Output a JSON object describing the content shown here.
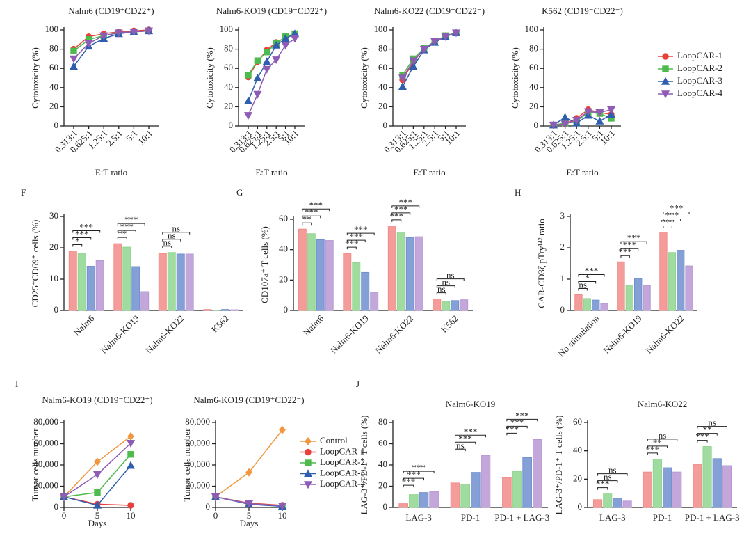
{
  "chart_data": [
    {
      "type": "line",
      "title": "Nalm6 (CD19⁺CD22⁺)",
      "xlabel": "E:T ratio",
      "ylabel": "Cytotoxicity (%)",
      "categories": [
        "0.313:1",
        "0.625:1",
        "1.25:1",
        "2.5:1",
        "5:1",
        "10:1"
      ],
      "ylim": [
        0,
        100
      ],
      "yticks": [
        0,
        20,
        40,
        60,
        80,
        100
      ],
      "series": [
        {
          "name": "LoopCAR-1",
          "color": "#e8413c",
          "marker": "circle",
          "values": [
            80,
            93,
            96,
            98,
            99,
            100
          ]
        },
        {
          "name": "LoopCAR-2",
          "color": "#4dbb4d",
          "marker": "square",
          "values": [
            78,
            90,
            94,
            97,
            98,
            99
          ]
        },
        {
          "name": "LoopCAR-3",
          "color": "#2f5eae",
          "marker": "triangle",
          "values": [
            62,
            83,
            91,
            96,
            98,
            99
          ]
        },
        {
          "name": "LoopCAR-4",
          "color": "#8e5bb5",
          "marker": "triangle-down",
          "values": [
            70,
            86,
            94,
            97,
            98,
            99
          ]
        }
      ]
    },
    {
      "type": "line",
      "title": "Nalm6-KO19 (CD19⁻CD22⁺)",
      "xlabel": "E:T ratio",
      "ylabel": "Cytotoxicity (%)",
      "categories": [
        "0.313:1",
        "0.625:1",
        "1.25:1",
        "2.5:1",
        "5:1",
        "10:1"
      ],
      "ylim": [
        0,
        100
      ],
      "yticks": [
        0,
        20,
        40,
        60,
        80,
        100
      ],
      "series": [
        {
          "name": "LoopCAR-1",
          "color": "#e8413c",
          "marker": "circle",
          "values": [
            51,
            67,
            79,
            87,
            92,
            95
          ]
        },
        {
          "name": "LoopCAR-2",
          "color": "#4dbb4d",
          "marker": "square",
          "values": [
            53,
            68,
            77,
            86,
            93,
            96
          ]
        },
        {
          "name": "LoopCAR-3",
          "color": "#2f5eae",
          "marker": "triangle",
          "values": [
            26,
            50,
            67,
            84,
            91,
            96
          ]
        },
        {
          "name": "LoopCAR-4",
          "color": "#8e5bb5",
          "marker": "triangle-down",
          "values": [
            11,
            33,
            59,
            69,
            84,
            91
          ]
        }
      ]
    },
    {
      "type": "line",
      "title": "Nalm6-KO22 (CD19⁺CD22⁻)",
      "xlabel": "E:T ratio",
      "ylabel": "Cytotoxicity (%)",
      "categories": [
        "0.313:1",
        "0.625:1",
        "1.25:1",
        "2.5:1",
        "5:1",
        "10:1"
      ],
      "ylim": [
        0,
        100
      ],
      "yticks": [
        0,
        20,
        40,
        60,
        80,
        100
      ],
      "series": [
        {
          "name": "LoopCAR-1",
          "color": "#e8413c",
          "marker": "circle",
          "values": [
            48,
            67,
            80,
            88,
            93,
            97
          ]
        },
        {
          "name": "LoopCAR-2",
          "color": "#4dbb4d",
          "marker": "square",
          "values": [
            53,
            70,
            81,
            88,
            94,
            97
          ]
        },
        {
          "name": "LoopCAR-3",
          "color": "#2f5eae",
          "marker": "triangle",
          "values": [
            41,
            62,
            79,
            87,
            93,
            97
          ]
        },
        {
          "name": "LoopCAR-4",
          "color": "#8e5bb5",
          "marker": "triangle-down",
          "values": [
            50,
            68,
            80,
            88,
            93,
            97
          ]
        }
      ]
    },
    {
      "type": "line",
      "title": "K562 (CD19⁻CD22⁻)",
      "xlabel": "E:T ratio",
      "ylabel": "Cytotoxicity (%)",
      "legend": "right",
      "categories": [
        "0.313:1",
        "0.625:1",
        "1.25:1",
        "2.5:1",
        "5:1",
        "10:1"
      ],
      "ylim": [
        0,
        100
      ],
      "yticks": [
        0,
        20,
        40,
        60,
        80,
        100
      ],
      "series": [
        {
          "name": "LoopCAR-1",
          "color": "#e8413c",
          "marker": "circle",
          "values": [
            1,
            2,
            8,
            17,
            14,
            12
          ]
        },
        {
          "name": "LoopCAR-2",
          "color": "#4dbb4d",
          "marker": "square",
          "values": [
            1,
            3,
            5,
            14,
            13,
            8
          ]
        },
        {
          "name": "LoopCAR-3",
          "color": "#2f5eae",
          "marker": "triangle",
          "values": [
            1,
            9,
            3,
            11,
            5,
            12
          ]
        },
        {
          "name": "LoopCAR-4",
          "color": "#8e5bb5",
          "marker": "triangle-down",
          "values": [
            1,
            2,
            6,
            15,
            14,
            17
          ]
        }
      ]
    },
    {
      "type": "bar",
      "panel": "F",
      "ylabel": "CD25⁺CD69⁺ cells (%)",
      "categories": [
        "Nalm6",
        "Nalm6-KO19",
        "Nalm6-KO22",
        "K562"
      ],
      "ylim": [
        0,
        30
      ],
      "yticks": [
        0,
        10,
        20,
        30
      ],
      "series": [
        {
          "name": "LoopCAR-1",
          "color": "#f28b88",
          "values": [
            19,
            21.3,
            18.2,
            0.3
          ]
        },
        {
          "name": "LoopCAR-2",
          "color": "#8fd68f",
          "values": [
            18.2,
            20.2,
            18.5,
            0.1
          ]
        },
        {
          "name": "LoopCAR-3",
          "color": "#6f8fd0",
          "values": [
            14.1,
            14.0,
            18.0,
            0.3
          ]
        },
        {
          "name": "LoopCAR-4",
          "color": "#b898d4",
          "values": [
            15.9,
            6.0,
            18.0,
            0.2
          ]
        }
      ],
      "significance": [
        [
          "*",
          "***",
          "***"
        ],
        [
          "**",
          "***",
          "***"
        ],
        [
          "ns",
          "ns",
          "ns"
        ],
        []
      ]
    },
    {
      "type": "bar",
      "panel": "G",
      "ylabel": "CD107a⁺ T cells (%)",
      "categories": [
        "Nalm6",
        "Nalm6-KO19",
        "Nalm6-KO22",
        "K562"
      ],
      "ylim": [
        0,
        60
      ],
      "yticks": [
        0,
        20,
        40,
        60
      ],
      "series": [
        {
          "name": "LoopCAR-1",
          "color": "#f28b88",
          "values": [
            53.5,
            37.5,
            55.5,
            7.5
          ]
        },
        {
          "name": "LoopCAR-2",
          "color": "#8fd68f",
          "values": [
            50.5,
            31.5,
            51.5,
            6.0
          ]
        },
        {
          "name": "LoopCAR-3",
          "color": "#6f8fd0",
          "values": [
            46.5,
            25.0,
            48.0,
            6.5
          ]
        },
        {
          "name": "LoopCAR-4",
          "color": "#b898d4",
          "values": [
            46.0,
            12.0,
            48.5,
            7.0
          ]
        }
      ],
      "significance": [
        [
          "**",
          "***",
          "***"
        ],
        [
          "***",
          "***",
          "***"
        ],
        [
          "***",
          "***",
          "***"
        ],
        [
          "ns",
          "ns",
          "ns"
        ]
      ]
    },
    {
      "type": "bar",
      "panel": "H",
      "ylabel": "CAR-CD3ζ pTry¹⁴² ratio",
      "categories": [
        "No stimulation",
        "Nalm6-KO19",
        "Nalm6-KO22"
      ],
      "ylim": [
        0,
        3
      ],
      "yticks": [
        0,
        1,
        2,
        3
      ],
      "series": [
        {
          "name": "LoopCAR-1",
          "color": "#f28b88",
          "values": [
            0.5,
            1.55,
            2.5
          ]
        },
        {
          "name": "LoopCAR-2",
          "color": "#8fd68f",
          "values": [
            0.38,
            0.8,
            1.85
          ]
        },
        {
          "name": "LoopCAR-3",
          "color": "#6f8fd0",
          "values": [
            0.33,
            1.02,
            1.92
          ]
        },
        {
          "name": "LoopCAR-4",
          "color": "#b898d4",
          "values": [
            0.22,
            0.8,
            1.42
          ]
        }
      ],
      "significance": [
        [
          "ns",
          "*",
          "***"
        ],
        [
          "***",
          "***",
          "***"
        ],
        [
          "***",
          "***",
          "***"
        ]
      ]
    },
    {
      "type": "line",
      "panel": "I",
      "title": "Nalm6-KO19 (CD19⁻CD22⁺)",
      "xlabel": "Days",
      "ylabel": "Tumor cells number",
      "x": [
        0,
        5,
        10
      ],
      "xlim": [
        0,
        10
      ],
      "xticks": [
        0,
        5,
        10
      ],
      "ylim": [
        0,
        80000
      ],
      "yticks": [
        0,
        {
          "value": 20000,
          "label": "20,000"
        },
        {
          "value": 40000,
          "label": "40,000"
        },
        {
          "value": 60000,
          "label": "60,000"
        },
        {
          "value": 80000,
          "label": "80,000"
        }
      ],
      "series": [
        {
          "name": "Control",
          "color": "#f0973f",
          "marker": "diamond",
          "values": [
            10000,
            43000,
            67000
          ]
        },
        {
          "name": "LoopCAR-1",
          "color": "#e8413c",
          "marker": "circle",
          "values": [
            10000,
            3000,
            2000
          ]
        },
        {
          "name": "LoopCAR-2",
          "color": "#4dbb4d",
          "marker": "square",
          "values": [
            10000,
            14000,
            50000
          ]
        },
        {
          "name": "LoopCAR-3",
          "color": "#2f5eae",
          "marker": "triangle",
          "values": [
            10000,
            2000,
            39500
          ]
        },
        {
          "name": "LoopCAR-4",
          "color": "#8e5bb5",
          "marker": "triangle-down",
          "values": [
            10000,
            31000,
            60500
          ]
        }
      ]
    },
    {
      "type": "line",
      "title": "Nalm6-KO19 (CD19⁺CD22⁻)",
      "xlabel": "Days",
      "ylabel": "Tumor cells number",
      "legend": "right",
      "x": [
        0,
        5,
        10
      ],
      "xlim": [
        0,
        10
      ],
      "xticks": [
        0,
        5,
        10
      ],
      "ylim": [
        0,
        80000
      ],
      "yticks": [
        0,
        {
          "value": 20000,
          "label": "20,000"
        },
        {
          "value": 40000,
          "label": "40,000"
        },
        {
          "value": 60000,
          "label": "60,000"
        },
        {
          "value": 80000,
          "label": "80,000"
        }
      ],
      "series": [
        {
          "name": "Control",
          "color": "#f0973f",
          "marker": "diamond",
          "values": [
            10000,
            33000,
            73000
          ]
        },
        {
          "name": "LoopCAR-1",
          "color": "#e8413c",
          "marker": "circle",
          "values": [
            10000,
            4000,
            2000
          ]
        },
        {
          "name": "LoopCAR-2",
          "color": "#4dbb4d",
          "marker": "square",
          "values": [
            10000,
            3500,
            1500
          ]
        },
        {
          "name": "LoopCAR-3",
          "color": "#2f5eae",
          "marker": "triangle",
          "values": [
            10000,
            3000,
            1000
          ]
        },
        {
          "name": "LoopCAR-4",
          "color": "#8e5bb5",
          "marker": "triangle-down",
          "values": [
            10000,
            3500,
            1500
          ]
        }
      ]
    },
    {
      "type": "bar",
      "panel": "J",
      "title": "Nalm6-KO19",
      "ylabel": "LAG-3⁺/PD-1⁺ T cells (%)",
      "categories": [
        "LAG-3",
        "PD-1",
        "PD-1 + LAG-3"
      ],
      "ylim": [
        0,
        80
      ],
      "yticks": [
        0,
        20,
        40,
        60,
        80
      ],
      "series": [
        {
          "name": "LoopCAR-1",
          "color": "#f28b88",
          "values": [
            3.5,
            23,
            28
          ]
        },
        {
          "name": "LoopCAR-2",
          "color": "#8fd68f",
          "values": [
            12,
            22,
            34
          ]
        },
        {
          "name": "LoopCAR-3",
          "color": "#6f8fd0",
          "values": [
            14,
            33,
            47
          ]
        },
        {
          "name": "LoopCAR-4",
          "color": "#b898d4",
          "values": [
            15,
            49,
            64
          ]
        }
      ],
      "significance": [
        [
          "***",
          "***",
          "***"
        ],
        [
          "ns",
          "***",
          "***"
        ],
        [
          "***",
          "***",
          "***"
        ]
      ]
    },
    {
      "type": "bar",
      "title": "Nalm6-KO22",
      "ylabel": "LAG-3⁺/PD-1⁺ T cells (%)",
      "categories": [
        "LAG-3",
        "PD-1",
        "PD-1 + LAG-3"
      ],
      "ylim": [
        0,
        60
      ],
      "yticks": [
        0,
        20,
        40,
        60
      ],
      "series": [
        {
          "name": "LoopCAR-1",
          "color": "#f28b88",
          "values": [
            5.5,
            25,
            30.5
          ]
        },
        {
          "name": "LoopCAR-2",
          "color": "#8fd68f",
          "values": [
            9.5,
            34,
            43
          ]
        },
        {
          "name": "LoopCAR-3",
          "color": "#6f8fd0",
          "values": [
            6.5,
            28,
            34.5
          ]
        },
        {
          "name": "LoopCAR-4",
          "color": "#b898d4",
          "values": [
            4.5,
            25,
            29.5
          ]
        }
      ],
      "significance": [
        [
          "***",
          "ns",
          "ns"
        ],
        [
          "***",
          "**",
          "ns"
        ],
        [
          "***",
          "**",
          "ns"
        ]
      ]
    }
  ]
}
